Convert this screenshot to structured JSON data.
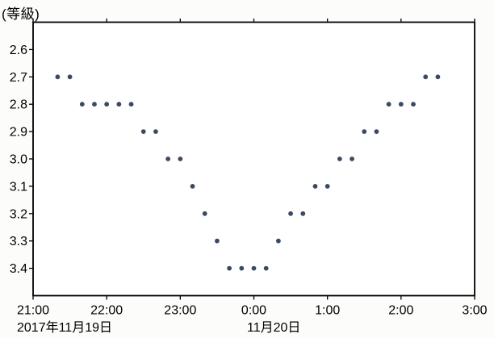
{
  "chart_data": {
    "type": "scatter",
    "title": "",
    "y_axis": {
      "unit": "(等級)",
      "tick_labels": [
        "2.6",
        "2.7",
        "2.8",
        "2.9",
        "3.0",
        "3.1",
        "3.2",
        "3.3",
        "3.4"
      ],
      "tick_values": [
        2.6,
        2.7,
        2.8,
        2.9,
        3.0,
        3.1,
        3.2,
        3.3,
        3.4
      ],
      "range": [
        2.5,
        3.5
      ],
      "inverted": true
    },
    "x_axis": {
      "tick_labels": [
        "21:00",
        "22:00",
        "23:00",
        "0:00",
        "1:00",
        "2:00",
        "3:00"
      ],
      "tick_hours": [
        21,
        22,
        23,
        24,
        25,
        26,
        27
      ],
      "range_hours": [
        21,
        27
      ],
      "date_labels": [
        {
          "text": "2017年11月19日",
          "at_hour": 21
        },
        {
          "text": "11月20日",
          "at_hour": 24
        }
      ]
    },
    "grid": false,
    "legend": false,
    "series": [
      {
        "name": "observed-magnitude",
        "marker": "circle",
        "color": "#3c4a61",
        "times": [
          "21:20",
          "21:30",
          "21:40",
          "21:50",
          "22:00",
          "22:10",
          "22:20",
          "22:30",
          "22:40",
          "22:50",
          "23:00",
          "23:10",
          "23:20",
          "23:30",
          "23:40",
          "23:50",
          "0:00",
          "0:10",
          "0:20",
          "0:30",
          "0:40",
          "0:50",
          "1:00",
          "1:10",
          "1:20",
          "1:30",
          "1:40",
          "1:50",
          "2:00",
          "2:10",
          "2:20",
          "2:30"
        ],
        "magnitudes": [
          2.7,
          2.7,
          2.8,
          2.8,
          2.8,
          2.8,
          2.8,
          2.9,
          2.9,
          3.0,
          3.0,
          3.1,
          3.2,
          3.3,
          3.4,
          3.4,
          3.4,
          3.4,
          3.3,
          3.2,
          3.2,
          3.1,
          3.1,
          3.0,
          3.0,
          2.9,
          2.9,
          2.8,
          2.8,
          2.8,
          2.7,
          2.7
        ]
      }
    ]
  }
}
